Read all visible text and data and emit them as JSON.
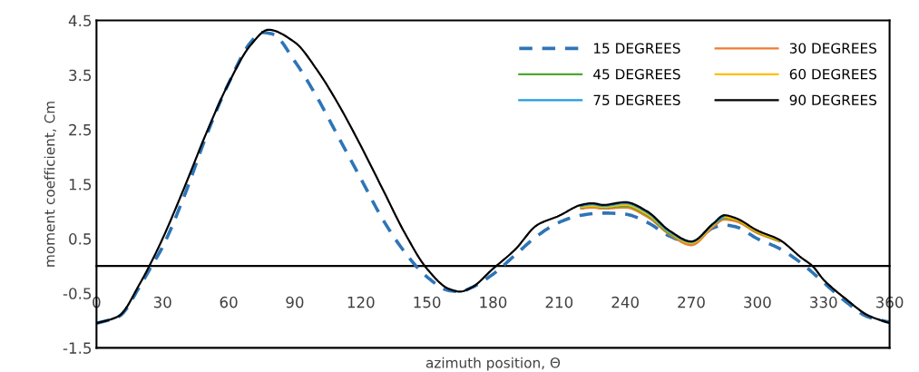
{
  "chart_data": {
    "type": "line",
    "xlabel": "azimuth position, Θ",
    "ylabel": "moment coefficient, Cm",
    "x": [
      0,
      10,
      20,
      25,
      30,
      40,
      50,
      60,
      70,
      78,
      90,
      100,
      110,
      120,
      130,
      140,
      150,
      160,
      165,
      170,
      180,
      190,
      200,
      210,
      220,
      225,
      230,
      240,
      250,
      260,
      270,
      280,
      285,
      290,
      300,
      310,
      320,
      325,
      330,
      340,
      350,
      360
    ],
    "series": [
      {
        "name": "15 DEGREES",
        "color": "#2e75b6",
        "line_style": "dashed",
        "x": [
          0,
          10,
          20,
          25,
          30,
          40,
          50,
          60,
          70,
          75,
          80,
          90,
          100,
          110,
          120,
          130,
          140,
          150,
          160,
          165,
          170,
          180,
          190,
          200,
          210,
          220,
          230,
          240,
          250,
          260,
          270,
          280,
          285,
          290,
          300,
          310,
          320,
          325,
          330,
          340,
          350,
          360
        ],
        "values": [
          -1.05,
          -0.93,
          -0.35,
          0.0,
          0.35,
          1.3,
          2.4,
          3.35,
          4.1,
          4.28,
          4.25,
          3.75,
          3.1,
          2.35,
          1.6,
          0.85,
          0.25,
          -0.2,
          -0.45,
          -0.47,
          -0.4,
          -0.15,
          0.2,
          0.55,
          0.8,
          0.93,
          0.97,
          0.95,
          0.8,
          0.55,
          0.42,
          0.7,
          0.75,
          0.72,
          0.5,
          0.32,
          0.05,
          -0.12,
          -0.3,
          -0.65,
          -0.93,
          -1.03
        ]
      },
      {
        "name": "30 DEGREES",
        "color": "#ed7d31",
        "values": [
          null,
          null,
          null,
          null,
          null,
          null,
          null,
          null,
          null,
          null,
          null,
          null,
          null,
          null,
          null,
          null,
          null,
          null,
          null,
          null,
          null,
          null,
          null,
          null,
          1.05,
          1.07,
          1.05,
          1.07,
          0.9,
          0.58,
          0.38,
          0.72,
          0.85,
          0.82,
          0.6,
          0.45,
          null,
          null,
          null,
          null,
          null,
          null
        ]
      },
      {
        "name": "45 DEGREES",
        "color": "#4ea72e",
        "values": [
          null,
          null,
          null,
          null,
          null,
          null,
          null,
          null,
          null,
          null,
          null,
          null,
          null,
          null,
          null,
          null,
          null,
          null,
          null,
          null,
          null,
          null,
          null,
          null,
          1.07,
          1.1,
          1.07,
          1.1,
          0.93,
          0.6,
          0.42,
          0.75,
          0.88,
          0.85,
          0.62,
          0.46,
          null,
          null,
          null,
          null,
          null,
          null
        ]
      },
      {
        "name": "60 DEGREES",
        "color": "#ffc000",
        "values": [
          null,
          null,
          null,
          null,
          null,
          null,
          null,
          null,
          null,
          null,
          null,
          null,
          null,
          null,
          null,
          null,
          null,
          null,
          null,
          null,
          null,
          null,
          null,
          null,
          1.08,
          1.1,
          1.08,
          1.12,
          0.95,
          0.62,
          0.42,
          0.75,
          0.9,
          0.86,
          0.63,
          0.47,
          null,
          null,
          null,
          null,
          null,
          null
        ]
      },
      {
        "name": "75 DEGREES",
        "color": "#1f9bde",
        "values": [
          null,
          null,
          null,
          null,
          null,
          null,
          null,
          null,
          null,
          null,
          null,
          null,
          null,
          null,
          null,
          null,
          null,
          null,
          null,
          null,
          null,
          null,
          null,
          null,
          1.1,
          1.13,
          1.1,
          1.15,
          0.98,
          0.63,
          0.44,
          0.77,
          0.92,
          null,
          null,
          null,
          null,
          null,
          null,
          null,
          null,
          null
        ]
      },
      {
        "name": "90 DEGREES",
        "color": "#000000",
        "values": [
          -1.05,
          -0.92,
          -0.3,
          0.08,
          0.5,
          1.45,
          2.45,
          3.35,
          4.05,
          4.33,
          4.1,
          3.6,
          2.95,
          2.2,
          1.4,
          0.6,
          -0.05,
          -0.42,
          -0.47,
          -0.4,
          -0.05,
          0.3,
          0.75,
          0.92,
          1.12,
          1.15,
          1.12,
          1.17,
          1.0,
          0.65,
          0.45,
          0.78,
          0.93,
          0.88,
          0.65,
          0.48,
          0.15,
          0,
          -0.25,
          -0.6,
          -0.9,
          -1.05
        ]
      }
    ],
    "xlim": [
      0,
      360
    ],
    "xticks": [
      0,
      30,
      60,
      90,
      120,
      150,
      180,
      210,
      240,
      270,
      300,
      330,
      360
    ],
    "ylim": [
      -1.5,
      4.5
    ],
    "yticks": [
      -1.5,
      -0.5,
      0.5,
      1.5,
      2.5,
      3.5,
      4.5
    ],
    "grid": false,
    "legend": "top right",
    "marker": "none"
  }
}
